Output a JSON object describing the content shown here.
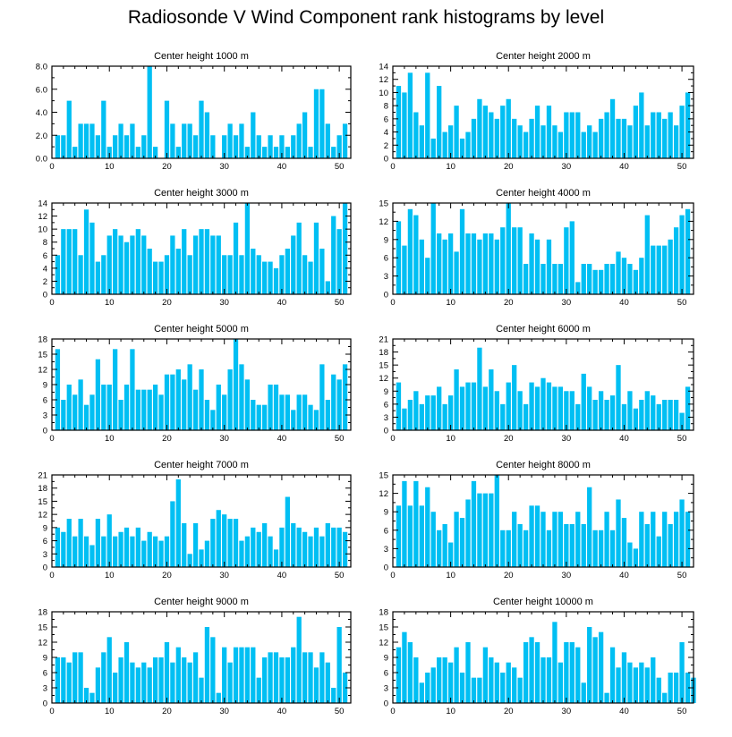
{
  "title": "Radiosonde V Wind Component rank histograms by level",
  "bar_color": "#00bff3",
  "chart_data": [
    {
      "type": "bar",
      "title": "Center height 1000 m",
      "xlim": [
        0,
        52
      ],
      "ylim": [
        0,
        8
      ],
      "xticks": [
        0,
        10,
        20,
        30,
        40,
        50
      ],
      "yticks": [
        "0.0",
        "2.0",
        "4.0",
        "6.0",
        "8.0"
      ],
      "ytick_values": [
        0,
        2,
        4,
        6,
        8
      ],
      "values": [
        2,
        2,
        5,
        1,
        3,
        3,
        3,
        2,
        5,
        1,
        2,
        3,
        2,
        3,
        1,
        2,
        8,
        1,
        0,
        5,
        3,
        1,
        3,
        3,
        2,
        5,
        4,
        2,
        0,
        2,
        3,
        2,
        3,
        1,
        4,
        2,
        1,
        2,
        1,
        2,
        1,
        2,
        3,
        4,
        1,
        6,
        6,
        3,
        1,
        2,
        3
      ]
    },
    {
      "type": "bar",
      "title": "Center height 2000 m",
      "xlim": [
        0,
        52
      ],
      "ylim": [
        0,
        14
      ],
      "xticks": [
        0,
        10,
        20,
        30,
        40,
        50
      ],
      "yticks": [
        "0",
        "2",
        "4",
        "6",
        "8",
        "10",
        "12",
        "14"
      ],
      "ytick_values": [
        0,
        2,
        4,
        6,
        8,
        10,
        12,
        14
      ],
      "values": [
        11,
        10,
        13,
        7,
        5,
        13,
        3,
        11,
        4,
        5,
        8,
        3,
        4,
        6,
        9,
        8,
        7,
        6,
        8,
        9,
        6,
        5,
        4,
        6,
        8,
        5,
        8,
        5,
        4,
        7,
        7,
        7,
        4,
        5,
        4,
        6,
        7,
        9,
        6,
        6,
        5,
        8,
        10,
        5,
        7,
        7,
        6,
        7,
        5,
        8,
        10
      ]
    },
    {
      "type": "bar",
      "title": "Center height 3000 m",
      "xlim": [
        0,
        52
      ],
      "ylim": [
        0,
        14
      ],
      "xticks": [
        0,
        10,
        20,
        30,
        40,
        50
      ],
      "yticks": [
        "0",
        "2",
        "4",
        "6",
        "8",
        "10",
        "12",
        "14"
      ],
      "ytick_values": [
        0,
        2,
        4,
        6,
        8,
        10,
        12,
        14
      ],
      "values": [
        6,
        10,
        10,
        10,
        6,
        13,
        11,
        5,
        6,
        9,
        10,
        9,
        8,
        9,
        10,
        9,
        7,
        5,
        5,
        6,
        9,
        7,
        10,
        6,
        9,
        10,
        10,
        9,
        9,
        6,
        6,
        11,
        6,
        14,
        7,
        6,
        5,
        5,
        4,
        6,
        7,
        9,
        11,
        6,
        5,
        11,
        7,
        2,
        12,
        10,
        14
      ]
    },
    {
      "type": "bar",
      "title": "Center height 4000 m",
      "xlim": [
        0,
        52
      ],
      "ylim": [
        0,
        15
      ],
      "xticks": [
        0,
        10,
        20,
        30,
        40,
        50
      ],
      "yticks": [
        "0",
        "3",
        "6",
        "9",
        "12",
        "15"
      ],
      "ytick_values": [
        0,
        3,
        6,
        9,
        12,
        15
      ],
      "values": [
        12,
        8,
        14,
        13,
        9,
        6,
        15,
        10,
        9,
        10,
        7,
        14,
        10,
        10,
        9,
        10,
        10,
        9,
        11,
        15,
        11,
        11,
        5,
        10,
        9,
        5,
        9,
        5,
        5,
        11,
        12,
        2,
        5,
        5,
        4,
        4,
        5,
        5,
        7,
        6,
        5,
        4,
        6,
        13,
        8,
        8,
        8,
        9,
        11,
        13,
        14
      ]
    },
    {
      "type": "bar",
      "title": "Center height 5000 m",
      "xlim": [
        0,
        52
      ],
      "ylim": [
        0,
        18
      ],
      "xticks": [
        0,
        10,
        20,
        30,
        40,
        50
      ],
      "yticks": [
        "0",
        "3",
        "6",
        "9",
        "12",
        "15",
        "18"
      ],
      "ytick_values": [
        0,
        3,
        6,
        9,
        12,
        15,
        18
      ],
      "values": [
        16,
        6,
        9,
        7,
        10,
        5,
        7,
        14,
        9,
        9,
        16,
        6,
        9,
        16,
        8,
        8,
        8,
        9,
        7,
        11,
        11,
        12,
        10,
        13,
        8,
        12,
        6,
        4,
        9,
        7,
        12,
        18,
        13,
        10,
        6,
        5,
        5,
        9,
        9,
        7,
        7,
        4,
        7,
        7,
        5,
        4,
        13,
        6,
        11,
        10,
        13
      ]
    },
    {
      "type": "bar",
      "title": "Center height 6000 m",
      "xlim": [
        0,
        52
      ],
      "ylim": [
        0,
        21
      ],
      "xticks": [
        0,
        10,
        20,
        30,
        40,
        50
      ],
      "yticks": [
        "0",
        "3",
        "6",
        "9",
        "12",
        "15",
        "18",
        "21"
      ],
      "ytick_values": [
        0,
        3,
        6,
        9,
        12,
        15,
        18,
        21
      ],
      "values": [
        11,
        5,
        7,
        9,
        6,
        8,
        8,
        10,
        6,
        8,
        14,
        10,
        11,
        11,
        19,
        10,
        14,
        9,
        6,
        11,
        15,
        9,
        6,
        11,
        10,
        12,
        11,
        10,
        10,
        9,
        9,
        6,
        13,
        10,
        7,
        9,
        7,
        8,
        15,
        6,
        9,
        5,
        7,
        9,
        8,
        6,
        7,
        7,
        7,
        4,
        10
      ]
    },
    {
      "type": "bar",
      "title": "Center height 7000 m",
      "xlim": [
        0,
        52
      ],
      "ylim": [
        0,
        21
      ],
      "xticks": [
        0,
        10,
        20,
        30,
        40,
        50
      ],
      "yticks": [
        "0",
        "3",
        "6",
        "9",
        "12",
        "15",
        "18",
        "21"
      ],
      "ytick_values": [
        0,
        3,
        6,
        9,
        12,
        15,
        18,
        21
      ],
      "values": [
        9,
        8,
        11,
        7,
        11,
        7,
        5,
        11,
        7,
        12,
        7,
        8,
        9,
        7,
        9,
        6,
        8,
        7,
        6,
        7,
        15,
        20,
        10,
        3,
        10,
        4,
        6,
        11,
        13,
        12,
        11,
        11,
        6,
        7,
        9,
        8,
        10,
        7,
        4,
        9,
        16,
        10,
        9,
        8,
        7,
        9,
        7,
        10,
        9,
        9,
        8
      ]
    },
    {
      "type": "bar",
      "title": "Center height 8000 m",
      "xlim": [
        0,
        52
      ],
      "ylim": [
        0,
        15
      ],
      "xticks": [
        0,
        10,
        20,
        30,
        40,
        50
      ],
      "yticks": [
        "0",
        "3",
        "6",
        "9",
        "12",
        "15"
      ],
      "ytick_values": [
        0,
        3,
        6,
        9,
        12,
        15
      ],
      "values": [
        10,
        14,
        10,
        14,
        10,
        13,
        9,
        6,
        7,
        4,
        9,
        8,
        11,
        14,
        12,
        12,
        12,
        15,
        6,
        6,
        9,
        7,
        6,
        10,
        10,
        9,
        6,
        9,
        9,
        7,
        7,
        9,
        7,
        13,
        6,
        6,
        9,
        6,
        11,
        8,
        4,
        3,
        9,
        7,
        9,
        5,
        9,
        7,
        9,
        11,
        9
      ]
    },
    {
      "type": "bar",
      "title": "Center height 9000 m",
      "xlim": [
        0,
        52
      ],
      "ylim": [
        0,
        18
      ],
      "xticks": [
        0,
        10,
        20,
        30,
        40,
        50
      ],
      "yticks": [
        "0",
        "3",
        "6",
        "9",
        "12",
        "15",
        "18"
      ],
      "ytick_values": [
        0,
        3,
        6,
        9,
        12,
        15,
        18
      ],
      "values": [
        9,
        9,
        8,
        10,
        10,
        3,
        2,
        7,
        10,
        13,
        6,
        9,
        12,
        8,
        7,
        8,
        7,
        9,
        9,
        12,
        8,
        11,
        9,
        8,
        10,
        5,
        15,
        13,
        2,
        11,
        8,
        11,
        11,
        11,
        11,
        5,
        9,
        10,
        10,
        9,
        9,
        11,
        17,
        10,
        10,
        7,
        10,
        8,
        3,
        15,
        6
      ]
    },
    {
      "type": "bar",
      "title": "Center height 10000 m",
      "xlim": [
        0,
        52
      ],
      "ylim": [
        0,
        18
      ],
      "xticks": [
        0,
        10,
        20,
        30,
        40,
        50
      ],
      "yticks": [
        "0",
        "3",
        "6",
        "9",
        "12",
        "15",
        "18"
      ],
      "ytick_values": [
        0,
        3,
        6,
        9,
        12,
        15,
        18
      ],
      "values": [
        11,
        14,
        12,
        9,
        4,
        6,
        7,
        9,
        9,
        8,
        11,
        6,
        12,
        5,
        5,
        11,
        9,
        8,
        6,
        8,
        7,
        5,
        12,
        13,
        12,
        9,
        9,
        16,
        8,
        12,
        12,
        11,
        4,
        15,
        13,
        14,
        2,
        11,
        7,
        10,
        8,
        7,
        8,
        7,
        9,
        5,
        2,
        6,
        6,
        12,
        6,
        5
      ]
    }
  ]
}
